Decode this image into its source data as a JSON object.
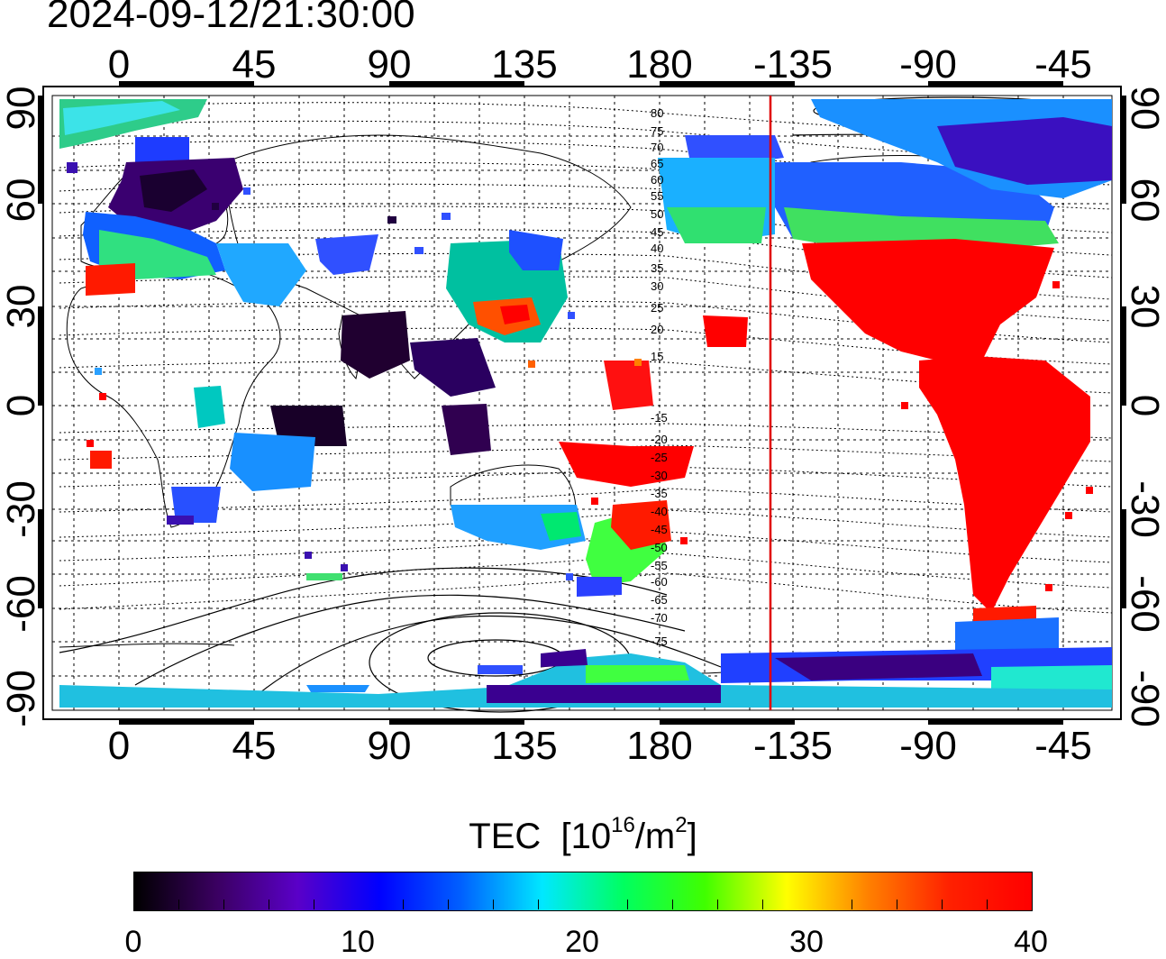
{
  "timestamp": "2024-09-12/21:30:00",
  "map": {
    "x_ticks": [
      "0",
      "45",
      "90",
      "135",
      "180",
      "-135",
      "-90",
      "-45"
    ],
    "y_ticks": [
      "90",
      "60",
      "30",
      "0",
      "-30",
      "-60",
      "-90"
    ],
    "contour_labels": [
      "80",
      "75",
      "70",
      "65",
      "60",
      "55",
      "50",
      "45",
      "40",
      "35",
      "30",
      "25",
      "20",
      "15",
      "-15",
      "-20",
      "-25",
      "-30",
      "-35",
      "-40",
      "-45",
      "-50",
      "-55",
      "-60",
      "-65",
      "-70",
      "-75"
    ],
    "terminator_color": "#e00000"
  },
  "colorbar": {
    "title": "TEC",
    "unit_base": "[10",
    "unit_exp": "16",
    "unit_mid": "/m",
    "unit_exp2": "2",
    "unit_end": "]",
    "ticks": [
      "0",
      "10",
      "20",
      "30",
      "40"
    ],
    "colors": [
      "#000000",
      "#3a0060",
      "#5a00c8",
      "#0000ff",
      "#0060ff",
      "#00e8ff",
      "#00ff60",
      "#40ff00",
      "#ffff00",
      "#ff8000",
      "#ff2000",
      "#ff0000"
    ]
  }
}
